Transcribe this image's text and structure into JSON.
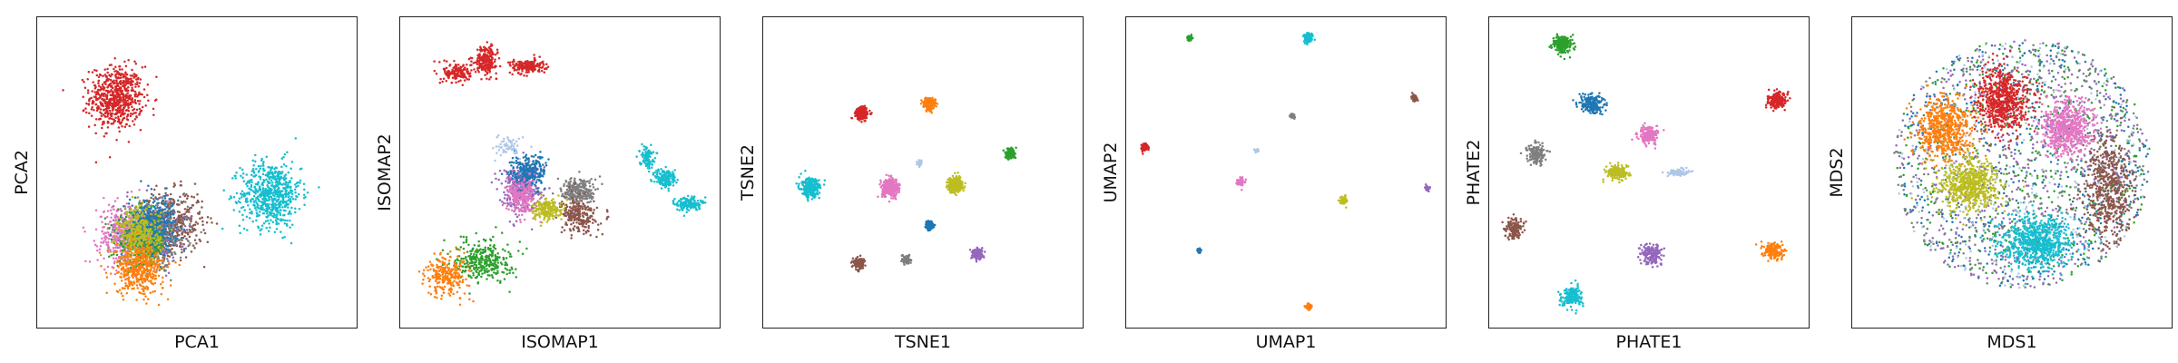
{
  "palette": {
    "red": "#d62728",
    "cyan": "#17becf",
    "orange": "#ff7f0e",
    "green": "#2ca02c",
    "pink": "#e377c2",
    "brown": "#8c564b",
    "purple": "#9467bd",
    "blue": "#1f77b4",
    "olive": "#bcbd22",
    "gray": "#7f7f7f",
    "lightblue": "#aec7e8"
  },
  "chart_data": [
    {
      "type": "scatter",
      "xlabel": "PCA1",
      "ylabel": "PCA2",
      "grid": false,
      "ticks": "hidden",
      "clusters": [
        {
          "color": "red",
          "center": [
            0.25,
            0.74
          ],
          "spread": [
            0.075,
            0.09
          ],
          "n": 650
        },
        {
          "color": "cyan",
          "center": [
            0.73,
            0.43
          ],
          "spread": [
            0.085,
            0.095
          ],
          "n": 650
        },
        {
          "color": "brown",
          "center": [
            0.42,
            0.34
          ],
          "spread": [
            0.09,
            0.09
          ],
          "n": 420
        },
        {
          "color": "purple",
          "center": [
            0.34,
            0.3
          ],
          "spread": [
            0.09,
            0.09
          ],
          "n": 380
        },
        {
          "color": "pink",
          "center": [
            0.27,
            0.3
          ],
          "spread": [
            0.07,
            0.09
          ],
          "n": 380
        },
        {
          "color": "gray",
          "center": [
            0.38,
            0.3
          ],
          "spread": [
            0.08,
            0.085
          ],
          "n": 380
        },
        {
          "color": "green",
          "center": [
            0.33,
            0.28
          ],
          "spread": [
            0.07,
            0.08
          ],
          "n": 350
        },
        {
          "color": "blue",
          "center": [
            0.36,
            0.34
          ],
          "spread": [
            0.07,
            0.08
          ],
          "n": 350
        },
        {
          "color": "olive",
          "center": [
            0.32,
            0.3
          ],
          "spread": [
            0.06,
            0.08
          ],
          "n": 350
        },
        {
          "color": "orange",
          "center": [
            0.32,
            0.19
          ],
          "spread": [
            0.07,
            0.07
          ],
          "n": 420
        }
      ]
    },
    {
      "type": "scatter",
      "xlabel": "ISOMAP1",
      "ylabel": "ISOMAP2",
      "grid": false,
      "ticks": "hidden",
      "clusters": [
        {
          "color": "red",
          "center": [
            0.27,
            0.86
          ],
          "spread": [
            0.03,
            0.04
          ],
          "n": 220
        },
        {
          "color": "red",
          "center": [
            0.4,
            0.84
          ],
          "spread": [
            0.05,
            0.02
          ],
          "n": 180
        },
        {
          "color": "red",
          "center": [
            0.18,
            0.82
          ],
          "spread": [
            0.04,
            0.03
          ],
          "n": 160
        },
        {
          "color": "cyan",
          "center": [
            0.83,
            0.48
          ],
          "spread": [
            0.03,
            0.03
          ],
          "n": 160
        },
        {
          "color": "cyan",
          "center": [
            0.9,
            0.4
          ],
          "spread": [
            0.035,
            0.02
          ],
          "n": 150
        },
        {
          "color": "cyan",
          "center": [
            0.77,
            0.55
          ],
          "spread": [
            0.02,
            0.03
          ],
          "n": 100
        },
        {
          "color": "purple",
          "center": [
            0.38,
            0.45
          ],
          "spread": [
            0.06,
            0.07
          ],
          "n": 330
        },
        {
          "color": "blue",
          "center": [
            0.4,
            0.5
          ],
          "spread": [
            0.05,
            0.05
          ],
          "n": 250
        },
        {
          "color": "gray",
          "center": [
            0.56,
            0.44
          ],
          "spread": [
            0.05,
            0.04
          ],
          "n": 250
        },
        {
          "color": "brown",
          "center": [
            0.56,
            0.36
          ],
          "spread": [
            0.05,
            0.05
          ],
          "n": 250
        },
        {
          "color": "pink",
          "center": [
            0.38,
            0.42
          ],
          "spread": [
            0.04,
            0.05
          ],
          "n": 220
        },
        {
          "color": "olive",
          "center": [
            0.46,
            0.38
          ],
          "spread": [
            0.04,
            0.03
          ],
          "n": 200
        },
        {
          "color": "lightblue",
          "center": [
            0.34,
            0.58
          ],
          "spread": [
            0.04,
            0.03
          ],
          "n": 60
        },
        {
          "color": "green",
          "center": [
            0.26,
            0.22
          ],
          "spread": [
            0.08,
            0.06
          ],
          "n": 330
        },
        {
          "color": "orange",
          "center": [
            0.15,
            0.17
          ],
          "spread": [
            0.06,
            0.06
          ],
          "n": 250
        }
      ]
    },
    {
      "type": "scatter",
      "xlabel": "TSNE1",
      "ylabel": "TSNE2",
      "grid": false,
      "ticks": "hidden",
      "clusters": [
        {
          "color": "red",
          "center": [
            0.31,
            0.69
          ],
          "spread": [
            0.018,
            0.018
          ],
          "n": 240
        },
        {
          "color": "orange",
          "center": [
            0.52,
            0.72
          ],
          "spread": [
            0.017,
            0.018
          ],
          "n": 220
        },
        {
          "color": "green",
          "center": [
            0.77,
            0.56
          ],
          "spread": [
            0.013,
            0.014
          ],
          "n": 180
        },
        {
          "color": "cyan",
          "center": [
            0.15,
            0.45
          ],
          "spread": [
            0.025,
            0.026
          ],
          "n": 320
        },
        {
          "color": "pink",
          "center": [
            0.4,
            0.45
          ],
          "spread": [
            0.025,
            0.026
          ],
          "n": 300
        },
        {
          "color": "olive",
          "center": [
            0.6,
            0.46
          ],
          "spread": [
            0.021,
            0.022
          ],
          "n": 260
        },
        {
          "color": "lightblue",
          "center": [
            0.49,
            0.53
          ],
          "spread": [
            0.008,
            0.008
          ],
          "n": 40
        },
        {
          "color": "blue",
          "center": [
            0.52,
            0.33
          ],
          "spread": [
            0.011,
            0.012
          ],
          "n": 120
        },
        {
          "color": "brown",
          "center": [
            0.3,
            0.21
          ],
          "spread": [
            0.015,
            0.016
          ],
          "n": 160
        },
        {
          "color": "gray",
          "center": [
            0.45,
            0.22
          ],
          "spread": [
            0.01,
            0.012
          ],
          "n": 100
        },
        {
          "color": "purple",
          "center": [
            0.67,
            0.24
          ],
          "spread": [
            0.014,
            0.015
          ],
          "n": 140
        }
      ]
    },
    {
      "type": "scatter",
      "xlabel": "UMAP1",
      "ylabel": "UMAP2",
      "grid": false,
      "ticks": "hidden",
      "clusters": [
        {
          "color": "green",
          "center": [
            0.2,
            0.93
          ],
          "spread": [
            0.007,
            0.008
          ],
          "n": 60
        },
        {
          "color": "cyan",
          "center": [
            0.57,
            0.93
          ],
          "spread": [
            0.012,
            0.013
          ],
          "n": 100
        },
        {
          "color": "brown",
          "center": [
            0.9,
            0.74
          ],
          "spread": [
            0.008,
            0.009
          ],
          "n": 60
        },
        {
          "color": "gray",
          "center": [
            0.52,
            0.68
          ],
          "spread": [
            0.006,
            0.007
          ],
          "n": 40
        },
        {
          "color": "red",
          "center": [
            0.06,
            0.58
          ],
          "spread": [
            0.009,
            0.01
          ],
          "n": 70
        },
        {
          "color": "lightblue",
          "center": [
            0.41,
            0.57
          ],
          "spread": [
            0.005,
            0.005
          ],
          "n": 20
        },
        {
          "color": "pink",
          "center": [
            0.36,
            0.47
          ],
          "spread": [
            0.01,
            0.012
          ],
          "n": 70
        },
        {
          "color": "olive",
          "center": [
            0.68,
            0.41
          ],
          "spread": [
            0.01,
            0.011
          ],
          "n": 70
        },
        {
          "color": "purple",
          "center": [
            0.94,
            0.45
          ],
          "spread": [
            0.006,
            0.007
          ],
          "n": 40
        },
        {
          "color": "blue",
          "center": [
            0.23,
            0.25
          ],
          "spread": [
            0.005,
            0.006
          ],
          "n": 30
        },
        {
          "color": "orange",
          "center": [
            0.57,
            0.07
          ],
          "spread": [
            0.008,
            0.009
          ],
          "n": 50
        }
      ]
    },
    {
      "type": "scatter",
      "xlabel": "PHATE1",
      "ylabel": "PHATE2",
      "grid": false,
      "ticks": "hidden",
      "clusters": [
        {
          "color": "green",
          "center": [
            0.23,
            0.91
          ],
          "spread": [
            0.028,
            0.025
          ],
          "n": 200
        },
        {
          "color": "red",
          "center": [
            0.9,
            0.73
          ],
          "spread": [
            0.025,
            0.022
          ],
          "n": 200
        },
        {
          "color": "blue",
          "center": [
            0.32,
            0.72
          ],
          "spread": [
            0.035,
            0.028
          ],
          "n": 200
        },
        {
          "color": "pink",
          "center": [
            0.5,
            0.62
          ],
          "spread": [
            0.03,
            0.025
          ],
          "n": 180
        },
        {
          "color": "gray",
          "center": [
            0.15,
            0.56
          ],
          "spread": [
            0.025,
            0.03
          ],
          "n": 160
        },
        {
          "color": "olive",
          "center": [
            0.4,
            0.5
          ],
          "spread": [
            0.03,
            0.02
          ],
          "n": 180
        },
        {
          "color": "lightblue",
          "center": [
            0.59,
            0.5
          ],
          "spread": [
            0.03,
            0.01
          ],
          "n": 80
        },
        {
          "color": "brown",
          "center": [
            0.08,
            0.32
          ],
          "spread": [
            0.025,
            0.03
          ],
          "n": 150
        },
        {
          "color": "purple",
          "center": [
            0.51,
            0.24
          ],
          "spread": [
            0.03,
            0.03
          ],
          "n": 170
        },
        {
          "color": "orange",
          "center": [
            0.89,
            0.25
          ],
          "spread": [
            0.028,
            0.025
          ],
          "n": 170
        },
        {
          "color": "cyan",
          "center": [
            0.26,
            0.1
          ],
          "spread": [
            0.03,
            0.03
          ],
          "n": 170
        }
      ]
    },
    {
      "type": "scatter",
      "xlabel": "MDS1",
      "ylabel": "MDS2",
      "grid": false,
      "ticks": "hidden",
      "disk": {
        "center": [
          0.53,
          0.53
        ],
        "radius": 0.4
      },
      "clusters": [
        {
          "color": "green",
          "center": [
            0.53,
            0.53
          ],
          "spread": [
            0.3,
            0.3
          ],
          "n": 500
        },
        {
          "color": "purple",
          "center": [
            0.53,
            0.53
          ],
          "spread": [
            0.3,
            0.3
          ],
          "n": 500
        },
        {
          "color": "blue",
          "center": [
            0.53,
            0.53
          ],
          "spread": [
            0.3,
            0.3
          ],
          "n": 450
        },
        {
          "color": "gray",
          "center": [
            0.53,
            0.53
          ],
          "spread": [
            0.3,
            0.3
          ],
          "n": 450
        },
        {
          "color": "lightblue",
          "center": [
            0.53,
            0.53
          ],
          "spread": [
            0.3,
            0.3
          ],
          "n": 300
        },
        {
          "color": "brown",
          "center": [
            0.8,
            0.45
          ],
          "spread": [
            0.07,
            0.15
          ],
          "n": 550
        },
        {
          "color": "orange",
          "center": [
            0.29,
            0.64
          ],
          "spread": [
            0.08,
            0.09
          ],
          "n": 600
        },
        {
          "color": "red",
          "center": [
            0.47,
            0.73
          ],
          "spread": [
            0.07,
            0.09
          ],
          "n": 650
        },
        {
          "color": "pink",
          "center": [
            0.67,
            0.64
          ],
          "spread": [
            0.07,
            0.08
          ],
          "n": 650
        },
        {
          "color": "olive",
          "center": [
            0.37,
            0.46
          ],
          "spread": [
            0.08,
            0.07
          ],
          "n": 650
        },
        {
          "color": "cyan",
          "center": [
            0.58,
            0.28
          ],
          "spread": [
            0.1,
            0.075
          ],
          "n": 750
        }
      ]
    }
  ]
}
